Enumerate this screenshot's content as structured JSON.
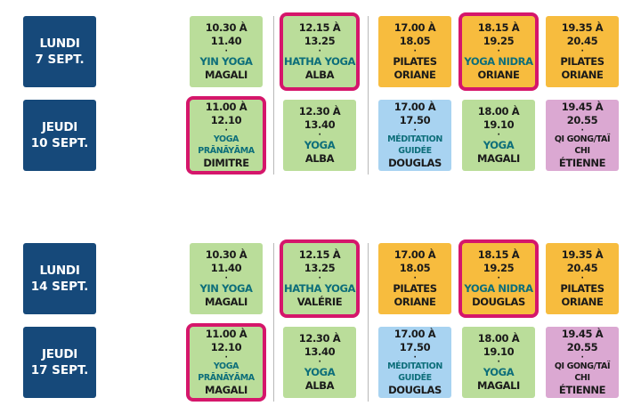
{
  "weeks": [
    {
      "rows": [
        {
          "day": [
            "LUNDI",
            "7 SEPT."
          ],
          "cells": [
            {
              "time": "10.30 À 11.40",
              "activity": "YIN YOGA",
              "teacher": "MAGALI",
              "color": "green",
              "highlight": false
            },
            {
              "time": "12.15 À 13.25",
              "activity": "HATHA YOGA",
              "teacher": "ALBA",
              "color": "green",
              "highlight": true
            },
            {
              "time": "17.00 À 18.05",
              "activity": "PILATES",
              "teacher": "ORIANE",
              "color": "orange",
              "highlight": false
            },
            {
              "time": "18.15 À 19.25",
              "activity": "YOGA NIDRA",
              "teacher": "ORIANE",
              "color": "orange",
              "highlight": true
            },
            {
              "time": "19.35 À 20.45",
              "activity": "PILATES",
              "teacher": "ORIANE",
              "color": "orange",
              "highlight": false
            }
          ]
        },
        {
          "day": [
            "JEUDI",
            "10 SEPT."
          ],
          "cells": [
            {
              "time": "11.00 À 12.10",
              "activity": "YOGA PRĀNĀYĀMA",
              "teacher": "DIMITRE",
              "color": "green",
              "highlight": true
            },
            {
              "time": "12.30 À 13.40",
              "activity": "YOGA",
              "teacher": "ALBA",
              "color": "green",
              "highlight": false
            },
            {
              "time": "17.00 À 17.50",
              "activity": "MÉDITATION GUIDÉE",
              "teacher": "DOUGLAS",
              "color": "blue",
              "highlight": false
            },
            {
              "time": "18.00 À 19.10",
              "activity": "YOGA",
              "teacher": "MAGALI",
              "color": "green",
              "highlight": false
            },
            {
              "time": "19.45 À 20.55",
              "activity": "QI GONG/TAÏ CHI",
              "teacher": "ÉTIENNE",
              "color": "pink",
              "highlight": false
            }
          ]
        }
      ]
    },
    {
      "rows": [
        {
          "day": [
            "LUNDI",
            "14 SEPT."
          ],
          "cells": [
            {
              "time": "10.30 À 11.40",
              "activity": "YIN YOGA",
              "teacher": "MAGALI",
              "color": "green",
              "highlight": false
            },
            {
              "time": "12.15 À 13.25",
              "activity": "HATHA YOGA",
              "teacher": "VALÉRIE",
              "color": "green",
              "highlight": true
            },
            {
              "time": "17.00 À 18.05",
              "activity": "PILATES",
              "teacher": "ORIANE",
              "color": "orange",
              "highlight": false
            },
            {
              "time": "18.15 À 19.25",
              "activity": "YOGA NIDRA",
              "teacher": "DOUGLAS",
              "color": "orange",
              "highlight": true
            },
            {
              "time": "19.35 À 20.45",
              "activity": "PILATES",
              "teacher": "ORIANE",
              "color": "orange",
              "highlight": false
            }
          ]
        },
        {
          "day": [
            "JEUDI",
            "17 SEPT."
          ],
          "cells": [
            {
              "time": "11.00 À 12.10",
              "activity": "YOGA PRĀNĀYĀMA",
              "teacher": "MAGALI",
              "color": "green",
              "highlight": true
            },
            {
              "time": "12.30 À 13.40",
              "activity": "YOGA",
              "teacher": "ALBA",
              "color": "green",
              "highlight": false
            },
            {
              "time": "17.00 À 17.50",
              "activity": "MÉDITATION GUIDÉE",
              "teacher": "DOUGLAS",
              "color": "blue",
              "highlight": false
            },
            {
              "time": "18.00 À 19.10",
              "activity": "YOGA",
              "teacher": "MAGALI",
              "color": "green",
              "highlight": false
            },
            {
              "time": "19.45 À 20.55",
              "activity": "QI GONG/TAÏ CHI",
              "teacher": "ÉTIENNE",
              "color": "pink",
              "highlight": false
            }
          ]
        }
      ]
    }
  ],
  "separator": "·",
  "colors": {
    "day": "#16497a",
    "green": "#badd9a",
    "orange": "#f7bc3e",
    "blue": "#a8d3f1",
    "pink": "#dba8d2",
    "highlight": "#d5166b"
  }
}
